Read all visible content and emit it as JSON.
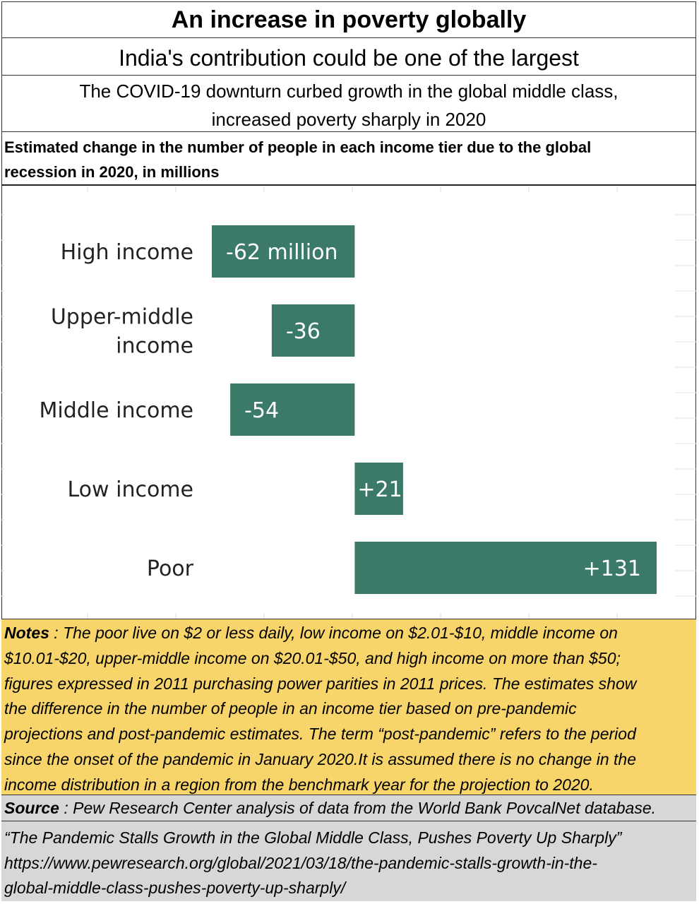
{
  "header": {
    "title": "An increase in poverty globally",
    "subtitle": "India's contribution could be one of the largest",
    "headline_line1": "The COVID-19 downturn curbed growth in the global middle class,",
    "headline_line2": "increased poverty sharply in 2020",
    "description_line1": "Estimated change in the number of people in each income tier due to the global",
    "description_line2": "recession in 2020, in millions"
  },
  "chart_data": {
    "type": "bar",
    "orientation": "horizontal",
    "categories": [
      "High income",
      "Upper-middle income",
      "Middle income",
      "Low income",
      "Poor"
    ],
    "category_lines": [
      [
        "High income"
      ],
      [
        "Upper-middle",
        "income"
      ],
      [
        "Middle income"
      ],
      [
        "Low income"
      ],
      [
        "Poor"
      ]
    ],
    "values": [
      -62,
      -36,
      -54,
      21,
      131
    ],
    "value_labels": [
      "-62 million",
      "-36",
      "-54",
      "+21",
      "+131"
    ],
    "xlim": [
      -62,
      131
    ],
    "bar_color": "#3b7a68",
    "grid": false
  },
  "notes": {
    "label": "Notes",
    "lines": [
      " : The poor live on $2 or less daily, low income on $2.01-$10, middle income on",
      "$10.01-$20, upper-middle income on $20.01-$50, and high income on more than $50;",
      "figures expressed in 2011 purchasing power parities in 2011 prices. The estimates show",
      "the difference in the number of people in an income tier based on pre-pandemic",
      "projections and post-pandemic estimates. The term “post-pandemic” refers to the period",
      "since the onset of the pandemic in January 2020.It is assumed there is no change in the",
      "income distribution in a region from the benchmark year for the projection to 2020."
    ]
  },
  "source": {
    "label": "Source",
    "text": " : Pew Research Center analysis of data from the World Bank PovcalNet database."
  },
  "reference": {
    "title": "“The Pandemic Stalls Growth in the Global Middle Class, Pushes Poverty Up Sharply”",
    "url_line1": "https://www.pewresearch.org/global/2021/03/18/the-pandemic-stalls-growth-in-the-",
    "url_line2": "global-middle-class-pushes-poverty-up-sharply/"
  }
}
